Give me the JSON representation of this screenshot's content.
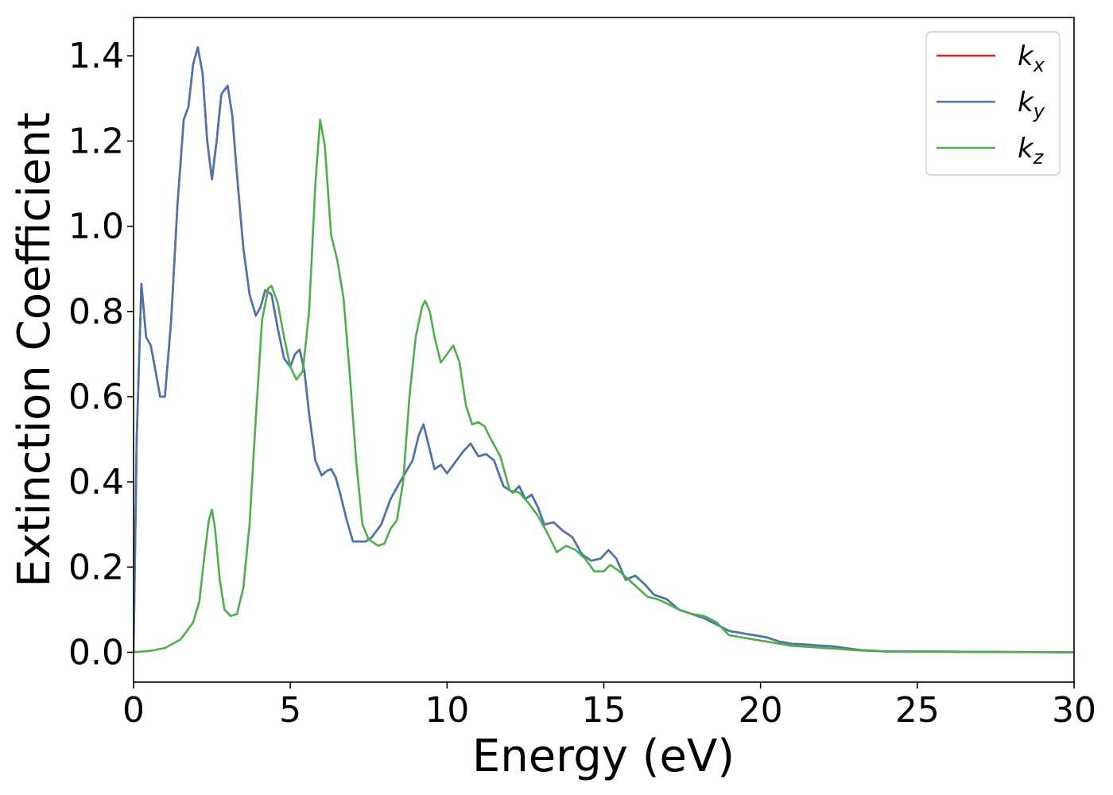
{
  "chart_data": {
    "type": "line",
    "xlabel": "Energy (eV)",
    "ylabel": "Extinction Coefficient",
    "xlim": [
      0,
      30
    ],
    "ylim": [
      -0.07,
      1.49
    ],
    "xticks": [
      0,
      5,
      10,
      15,
      20,
      25,
      30
    ],
    "yticks": [
      0.0,
      0.2,
      0.4,
      0.6,
      0.8,
      1.0,
      1.2,
      1.4
    ],
    "ytick_labels": [
      "0.0",
      "0.2",
      "0.4",
      "0.6",
      "0.8",
      "1.0",
      "1.2",
      "1.4"
    ],
    "grid": false,
    "legend_position": "top-right",
    "series": [
      {
        "name": "k_x",
        "legend_base": "k",
        "legend_sub": "x",
        "color": "#d62728",
        "x": [
          0,
          0.1,
          0.25,
          0.4,
          0.55,
          0.7,
          0.85,
          1.0,
          1.2,
          1.4,
          1.6,
          1.75,
          1.9,
          2.05,
          2.2,
          2.35,
          2.5,
          2.65,
          2.8,
          3.0,
          3.15,
          3.3,
          3.5,
          3.7,
          3.9,
          4.05,
          4.2,
          4.4,
          4.6,
          4.8,
          5.0,
          5.15,
          5.3,
          5.45,
          5.6,
          5.8,
          6.0,
          6.15,
          6.3,
          6.45,
          6.6,
          6.8,
          7.0,
          7.2,
          7.4,
          7.6,
          7.9,
          8.2,
          8.5,
          8.9,
          9.1,
          9.25,
          9.4,
          9.6,
          9.8,
          10.0,
          10.2,
          10.5,
          10.75,
          11.0,
          11.25,
          11.5,
          11.8,
          12.1,
          12.3,
          12.5,
          12.7,
          12.9,
          13.1,
          13.4,
          13.7,
          14.0,
          14.3,
          14.6,
          14.9,
          15.15,
          15.4,
          15.7,
          16.0,
          16.3,
          16.6,
          17.0,
          17.4,
          17.8,
          18.2,
          18.6,
          19.0,
          19.4,
          19.8,
          20.2,
          20.6,
          21.0,
          21.5,
          22.0,
          22.3,
          22.7,
          23.2,
          24.0,
          25.0,
          27.0,
          30.0
        ],
        "y": [
          0.0,
          0.5,
          0.865,
          0.74,
          0.72,
          0.66,
          0.6,
          0.6,
          0.78,
          1.05,
          1.25,
          1.28,
          1.38,
          1.42,
          1.36,
          1.2,
          1.11,
          1.2,
          1.31,
          1.33,
          1.26,
          1.12,
          0.95,
          0.84,
          0.79,
          0.81,
          0.85,
          0.84,
          0.76,
          0.69,
          0.67,
          0.7,
          0.71,
          0.66,
          0.56,
          0.45,
          0.415,
          0.425,
          0.43,
          0.41,
          0.37,
          0.31,
          0.26,
          0.26,
          0.26,
          0.27,
          0.3,
          0.36,
          0.4,
          0.45,
          0.51,
          0.535,
          0.49,
          0.43,
          0.44,
          0.42,
          0.44,
          0.47,
          0.49,
          0.46,
          0.465,
          0.45,
          0.39,
          0.375,
          0.39,
          0.36,
          0.37,
          0.34,
          0.3,
          0.305,
          0.285,
          0.27,
          0.23,
          0.215,
          0.22,
          0.24,
          0.22,
          0.17,
          0.18,
          0.16,
          0.135,
          0.125,
          0.1,
          0.09,
          0.08,
          0.065,
          0.05,
          0.045,
          0.04,
          0.035,
          0.025,
          0.02,
          0.018,
          0.015,
          0.014,
          0.01,
          0.005,
          0.002,
          0.002,
          0.001,
          0.0
        ]
      },
      {
        "name": "k_y",
        "legend_base": "k",
        "legend_sub": "y",
        "color": "#4a76b0",
        "x": [
          0,
          0.1,
          0.25,
          0.4,
          0.55,
          0.7,
          0.85,
          1.0,
          1.2,
          1.4,
          1.6,
          1.75,
          1.9,
          2.05,
          2.2,
          2.35,
          2.5,
          2.65,
          2.8,
          3.0,
          3.15,
          3.3,
          3.5,
          3.7,
          3.9,
          4.05,
          4.2,
          4.4,
          4.6,
          4.8,
          5.0,
          5.15,
          5.3,
          5.45,
          5.6,
          5.8,
          6.0,
          6.15,
          6.3,
          6.45,
          6.6,
          6.8,
          7.0,
          7.2,
          7.4,
          7.6,
          7.9,
          8.2,
          8.5,
          8.9,
          9.1,
          9.25,
          9.4,
          9.6,
          9.8,
          10.0,
          10.2,
          10.5,
          10.75,
          11.0,
          11.25,
          11.5,
          11.8,
          12.1,
          12.3,
          12.5,
          12.7,
          12.9,
          13.1,
          13.4,
          13.7,
          14.0,
          14.3,
          14.6,
          14.9,
          15.15,
          15.4,
          15.7,
          16.0,
          16.3,
          16.6,
          17.0,
          17.4,
          17.8,
          18.2,
          18.6,
          19.0,
          19.4,
          19.8,
          20.2,
          20.6,
          21.0,
          21.5,
          22.0,
          22.3,
          22.7,
          23.2,
          24.0,
          25.0,
          27.0,
          30.0
        ],
        "y": [
          0.0,
          0.5,
          0.865,
          0.74,
          0.72,
          0.66,
          0.6,
          0.6,
          0.78,
          1.05,
          1.25,
          1.28,
          1.38,
          1.42,
          1.36,
          1.2,
          1.11,
          1.2,
          1.31,
          1.33,
          1.26,
          1.12,
          0.95,
          0.84,
          0.79,
          0.81,
          0.85,
          0.84,
          0.76,
          0.69,
          0.67,
          0.7,
          0.71,
          0.66,
          0.56,
          0.45,
          0.415,
          0.425,
          0.43,
          0.41,
          0.37,
          0.31,
          0.26,
          0.26,
          0.26,
          0.27,
          0.3,
          0.36,
          0.4,
          0.45,
          0.51,
          0.535,
          0.49,
          0.43,
          0.44,
          0.42,
          0.44,
          0.47,
          0.49,
          0.46,
          0.465,
          0.45,
          0.39,
          0.375,
          0.39,
          0.36,
          0.37,
          0.34,
          0.3,
          0.305,
          0.285,
          0.27,
          0.23,
          0.215,
          0.22,
          0.24,
          0.22,
          0.17,
          0.18,
          0.16,
          0.135,
          0.125,
          0.1,
          0.09,
          0.08,
          0.065,
          0.05,
          0.045,
          0.04,
          0.035,
          0.025,
          0.02,
          0.018,
          0.015,
          0.014,
          0.01,
          0.005,
          0.002,
          0.002,
          0.001,
          0.0
        ]
      },
      {
        "name": "k_z",
        "legend_base": "k",
        "legend_sub": "z",
        "color": "#4daf4a",
        "x": [
          0,
          0.5,
          1.0,
          1.5,
          1.9,
          2.1,
          2.25,
          2.4,
          2.5,
          2.6,
          2.75,
          2.9,
          3.1,
          3.3,
          3.5,
          3.7,
          3.9,
          4.1,
          4.3,
          4.4,
          4.6,
          4.8,
          5.0,
          5.2,
          5.4,
          5.6,
          5.8,
          5.95,
          6.1,
          6.3,
          6.5,
          6.7,
          6.9,
          7.1,
          7.3,
          7.5,
          7.8,
          8.0,
          8.2,
          8.4,
          8.6,
          8.8,
          9.0,
          9.2,
          9.3,
          9.45,
          9.6,
          9.8,
          10.0,
          10.2,
          10.4,
          10.6,
          10.8,
          11.0,
          11.2,
          11.4,
          11.7,
          12.0,
          12.3,
          12.6,
          12.9,
          13.2,
          13.5,
          13.8,
          14.1,
          14.4,
          14.7,
          15.0,
          15.2,
          15.5,
          15.8,
          16.1,
          16.4,
          16.7,
          17.0,
          17.4,
          17.8,
          18.2,
          18.6,
          19.0,
          19.4,
          19.8,
          20.2,
          20.6,
          21.0,
          21.5,
          22.0,
          22.5,
          23.0,
          23.5,
          24.0,
          25.0,
          27.0,
          30.0
        ],
        "y": [
          0.0,
          0.003,
          0.01,
          0.03,
          0.07,
          0.12,
          0.22,
          0.31,
          0.335,
          0.29,
          0.17,
          0.1,
          0.085,
          0.09,
          0.15,
          0.3,
          0.55,
          0.78,
          0.855,
          0.86,
          0.82,
          0.74,
          0.67,
          0.64,
          0.66,
          0.8,
          1.1,
          1.25,
          1.19,
          0.98,
          0.92,
          0.83,
          0.65,
          0.45,
          0.3,
          0.265,
          0.25,
          0.255,
          0.29,
          0.31,
          0.4,
          0.6,
          0.74,
          0.81,
          0.825,
          0.8,
          0.74,
          0.68,
          0.7,
          0.72,
          0.68,
          0.58,
          0.535,
          0.54,
          0.53,
          0.5,
          0.46,
          0.38,
          0.375,
          0.35,
          0.32,
          0.28,
          0.235,
          0.25,
          0.24,
          0.22,
          0.19,
          0.19,
          0.205,
          0.19,
          0.17,
          0.15,
          0.13,
          0.125,
          0.115,
          0.1,
          0.09,
          0.085,
          0.07,
          0.04,
          0.035,
          0.03,
          0.025,
          0.02,
          0.015,
          0.013,
          0.01,
          0.008,
          0.005,
          0.003,
          0.002,
          0.001,
          0.001,
          0.0
        ]
      }
    ]
  }
}
